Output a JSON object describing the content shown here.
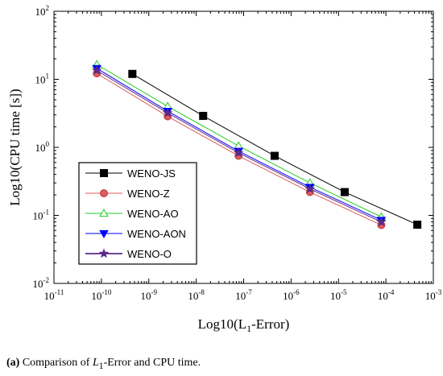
{
  "caption": {
    "letter": "(a)",
    "text_before": " Comparison of ",
    "symbol": "L",
    "subscript": "1",
    "text_after": "-Error and CPU time."
  },
  "chart_data": {
    "type": "line",
    "xlabel": "Log10(L1-Error)",
    "ylabel": "Log10(CPU time [s])",
    "xscale": "log",
    "yscale": "log",
    "xlim": [
      1e-11,
      0.001
    ],
    "ylim": [
      0.01,
      100
    ],
    "x_ticks": [
      {
        "value": 1e-11,
        "base": "10",
        "exp": "-11"
      },
      {
        "value": 1e-10,
        "base": "10",
        "exp": "-10"
      },
      {
        "value": 1e-09,
        "base": "10",
        "exp": "-9"
      },
      {
        "value": 1e-08,
        "base": "10",
        "exp": "-8"
      },
      {
        "value": 1e-07,
        "base": "10",
        "exp": "-7"
      },
      {
        "value": 1e-06,
        "base": "10",
        "exp": "-6"
      },
      {
        "value": 1e-05,
        "base": "10",
        "exp": "-5"
      },
      {
        "value": 0.0001,
        "base": "10",
        "exp": "-4"
      },
      {
        "value": 0.001,
        "base": "10",
        "exp": "-3"
      }
    ],
    "y_ticks": [
      {
        "value": 0.01,
        "base": "10",
        "exp": "-2"
      },
      {
        "value": 0.1,
        "base": "10",
        "exp": "-1"
      },
      {
        "value": 1,
        "base": "10",
        "exp": "0"
      },
      {
        "value": 10,
        "base": "10",
        "exp": "1"
      },
      {
        "value": 100,
        "base": "10",
        "exp": "2"
      }
    ],
    "grid": false,
    "legend_position": "bottom-left",
    "series": [
      {
        "name": "WENO-JS",
        "color": "#000000",
        "marker": "square",
        "x": [
          4.5e-10,
          1.4e-08,
          4.5e-07,
          1.35e-05,
          0.00046
        ],
        "y": [
          12,
          2.9,
          0.75,
          0.22,
          0.073
        ]
      },
      {
        "name": "WENO-Z",
        "color": "#e05a5a",
        "marker": "circle",
        "x": [
          8e-11,
          2.5e-09,
          7.8e-08,
          2.5e-06,
          8e-05
        ],
        "y": [
          12.2,
          2.85,
          0.75,
          0.22,
          0.072
        ]
      },
      {
        "name": "WENO-AO",
        "color": "#22cc22",
        "marker": "triangle-up-open",
        "x": [
          8e-11,
          2.5e-09,
          7.8e-08,
          2.5e-06,
          8e-05
        ],
        "y": [
          16.5,
          4.0,
          1.05,
          0.3,
          0.095
        ]
      },
      {
        "name": "WENO-AON",
        "color": "#0000ff",
        "marker": "triangle-down",
        "x": [
          8e-11,
          2.5e-09,
          7.8e-08,
          2.5e-06,
          8e-05
        ],
        "y": [
          14.5,
          3.4,
          0.88,
          0.26,
          0.085
        ]
      },
      {
        "name": "WENO-O",
        "color": "#5a2a8a",
        "marker": "star",
        "x": [
          8e-11,
          2.5e-09,
          7.8e-08,
          2.5e-06,
          8e-05
        ],
        "y": [
          13.5,
          3.2,
          0.83,
          0.245,
          0.08
        ]
      }
    ]
  }
}
